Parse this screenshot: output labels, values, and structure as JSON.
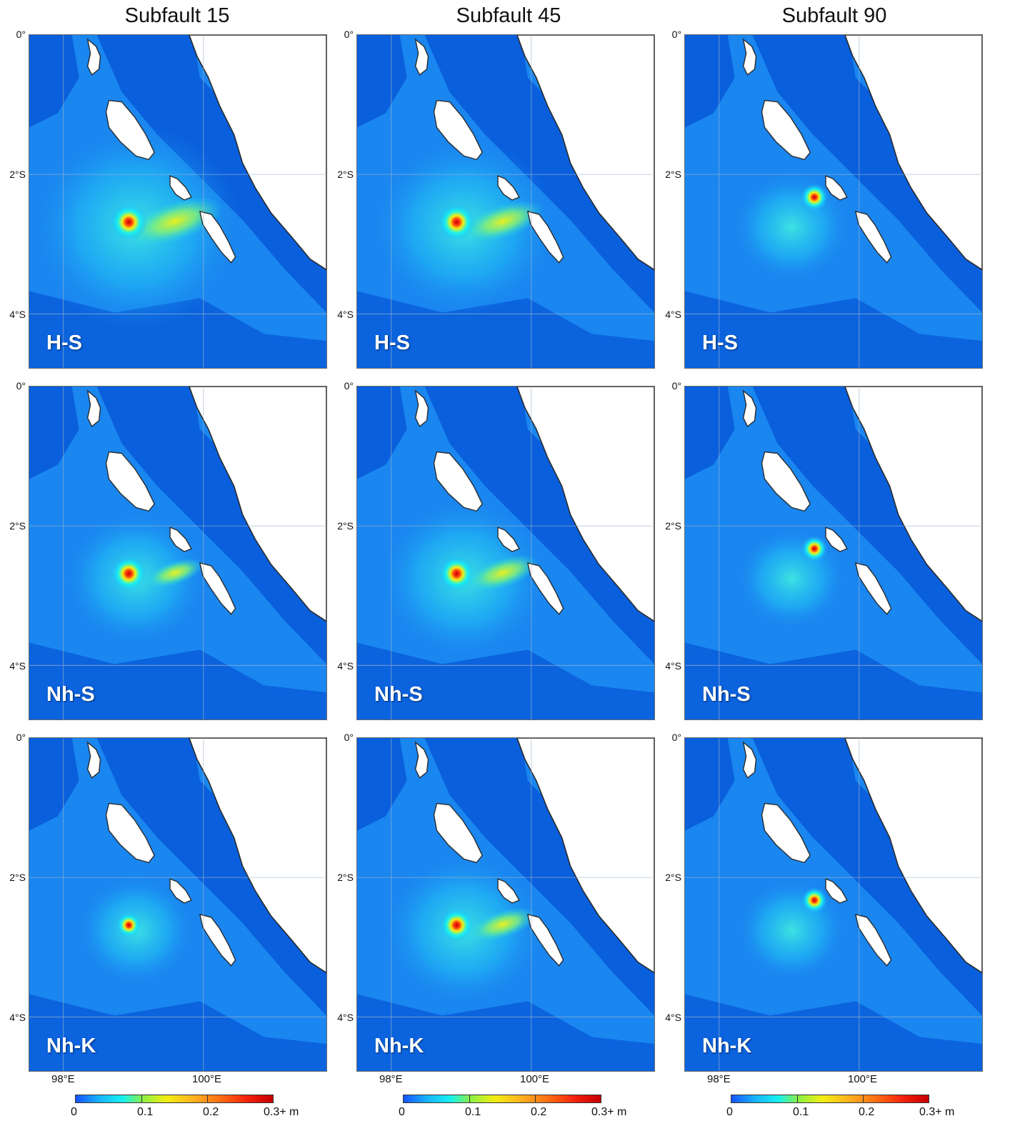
{
  "columns": [
    {
      "title": "Subfault 15"
    },
    {
      "title": "Subfault 45"
    },
    {
      "title": "Subfault 90"
    }
  ],
  "rows": [
    {
      "label": "H-S"
    },
    {
      "label": "Nh-S"
    },
    {
      "label": "Nh-K"
    }
  ],
  "axes": {
    "lat_ticks": [
      "0°",
      "2°S",
      "4°S"
    ],
    "lon_ticks": [
      "98°E",
      "100°E"
    ]
  },
  "colorbar": {
    "ticks": [
      "0",
      "0.1",
      "0.2",
      "0.3+ m"
    ],
    "colors": [
      "#1454ff",
      "#19b4ff",
      "#18f2ee",
      "#8cf043",
      "#f2ee12",
      "#ffb020",
      "#ff6a12",
      "#f21c0c",
      "#c40000"
    ]
  },
  "colors": {
    "deep_ocean": "#0a5fdc",
    "shelf_ocean": "#1a86f0",
    "land": "#ffffff",
    "coast": "#2a2a2a",
    "grid": "#9fb6cf"
  },
  "panels": [
    {
      "label": "H-S",
      "subfault": 15,
      "hotspot_strength": 1.0,
      "spread": 1.0
    },
    {
      "label": "H-S",
      "subfault": 45,
      "hotspot_strength": 1.0,
      "spread": 0.85
    },
    {
      "label": "H-S",
      "subfault": 90,
      "hotspot_strength": 0.65,
      "spread": 0.45
    },
    {
      "label": "Nh-S",
      "subfault": 15,
      "hotspot_strength": 0.95,
      "spread": 0.6
    },
    {
      "label": "Nh-S",
      "subfault": 45,
      "hotspot_strength": 0.95,
      "spread": 0.75
    },
    {
      "label": "Nh-S",
      "subfault": 90,
      "hotspot_strength": 0.6,
      "spread": 0.4
    },
    {
      "label": "Nh-K",
      "subfault": 15,
      "hotspot_strength": 0.6,
      "spread": 0.45
    },
    {
      "label": "Nh-K",
      "subfault": 45,
      "hotspot_strength": 0.9,
      "spread": 0.7
    },
    {
      "label": "Nh-K",
      "subfault": 90,
      "hotspot_strength": 0.6,
      "spread": 0.4
    }
  ]
}
